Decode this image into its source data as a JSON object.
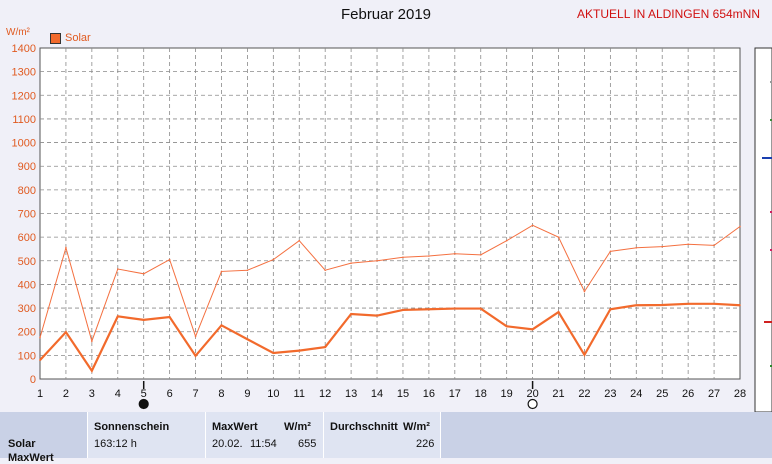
{
  "title": "Februar 2019",
  "headline": "AKTUELL IN ALDINGEN 654mNN",
  "unit": "W/m²",
  "legend": {
    "label": "Solar",
    "color": "#f26a2c"
  },
  "chart_data": {
    "type": "line",
    "title": "Februar 2019",
    "ylabel": "W/m²",
    "x": [
      1,
      2,
      3,
      4,
      5,
      6,
      7,
      8,
      9,
      10,
      11,
      12,
      13,
      14,
      15,
      16,
      17,
      18,
      19,
      20,
      21,
      22,
      23,
      24,
      25,
      26,
      27,
      28
    ],
    "xlim": [
      1,
      28
    ],
    "ylim": [
      0,
      1400
    ],
    "yticks": [
      0,
      100,
      200,
      300,
      400,
      500,
      600,
      700,
      800,
      900,
      1000,
      1100,
      1200,
      1300,
      1400
    ],
    "grid": true,
    "series": [
      {
        "name": "Solar",
        "values": [
          80,
          198,
          35,
          265,
          250,
          262,
          98,
          227,
          168,
          110,
          120,
          135,
          275,
          268,
          292,
          295,
          298,
          298,
          223,
          210,
          283,
          102,
          295,
          312,
          313,
          318,
          318,
          312
        ]
      },
      {
        "values": [
          175,
          555,
          160,
          465,
          445,
          505,
          180,
          455,
          460,
          505,
          585,
          460,
          490,
          500,
          515,
          520,
          530,
          525,
          585,
          650,
          600,
          370,
          540,
          555,
          560,
          570,
          565,
          645
        ]
      }
    ],
    "markers": [
      {
        "x": 5,
        "symbol": "filled-circle"
      },
      {
        "x": 20,
        "symbol": "open-circle"
      }
    ]
  },
  "info": {
    "row_label": "Solar",
    "row_label_2": "MaxWert",
    "sonnenschein_header": "Sonnenschein",
    "sonnenschein_value": "163:12 h",
    "maxwert_header": "MaxWert",
    "maxwert_unit": "W/m²",
    "maxwert_date": "20.02.",
    "maxwert_time": "11:54",
    "maxwert_value": "655",
    "durchschnitt_header": "Durchschnitt",
    "durchschnitt_unit": "W/m²",
    "durchschnitt_value": "226"
  }
}
